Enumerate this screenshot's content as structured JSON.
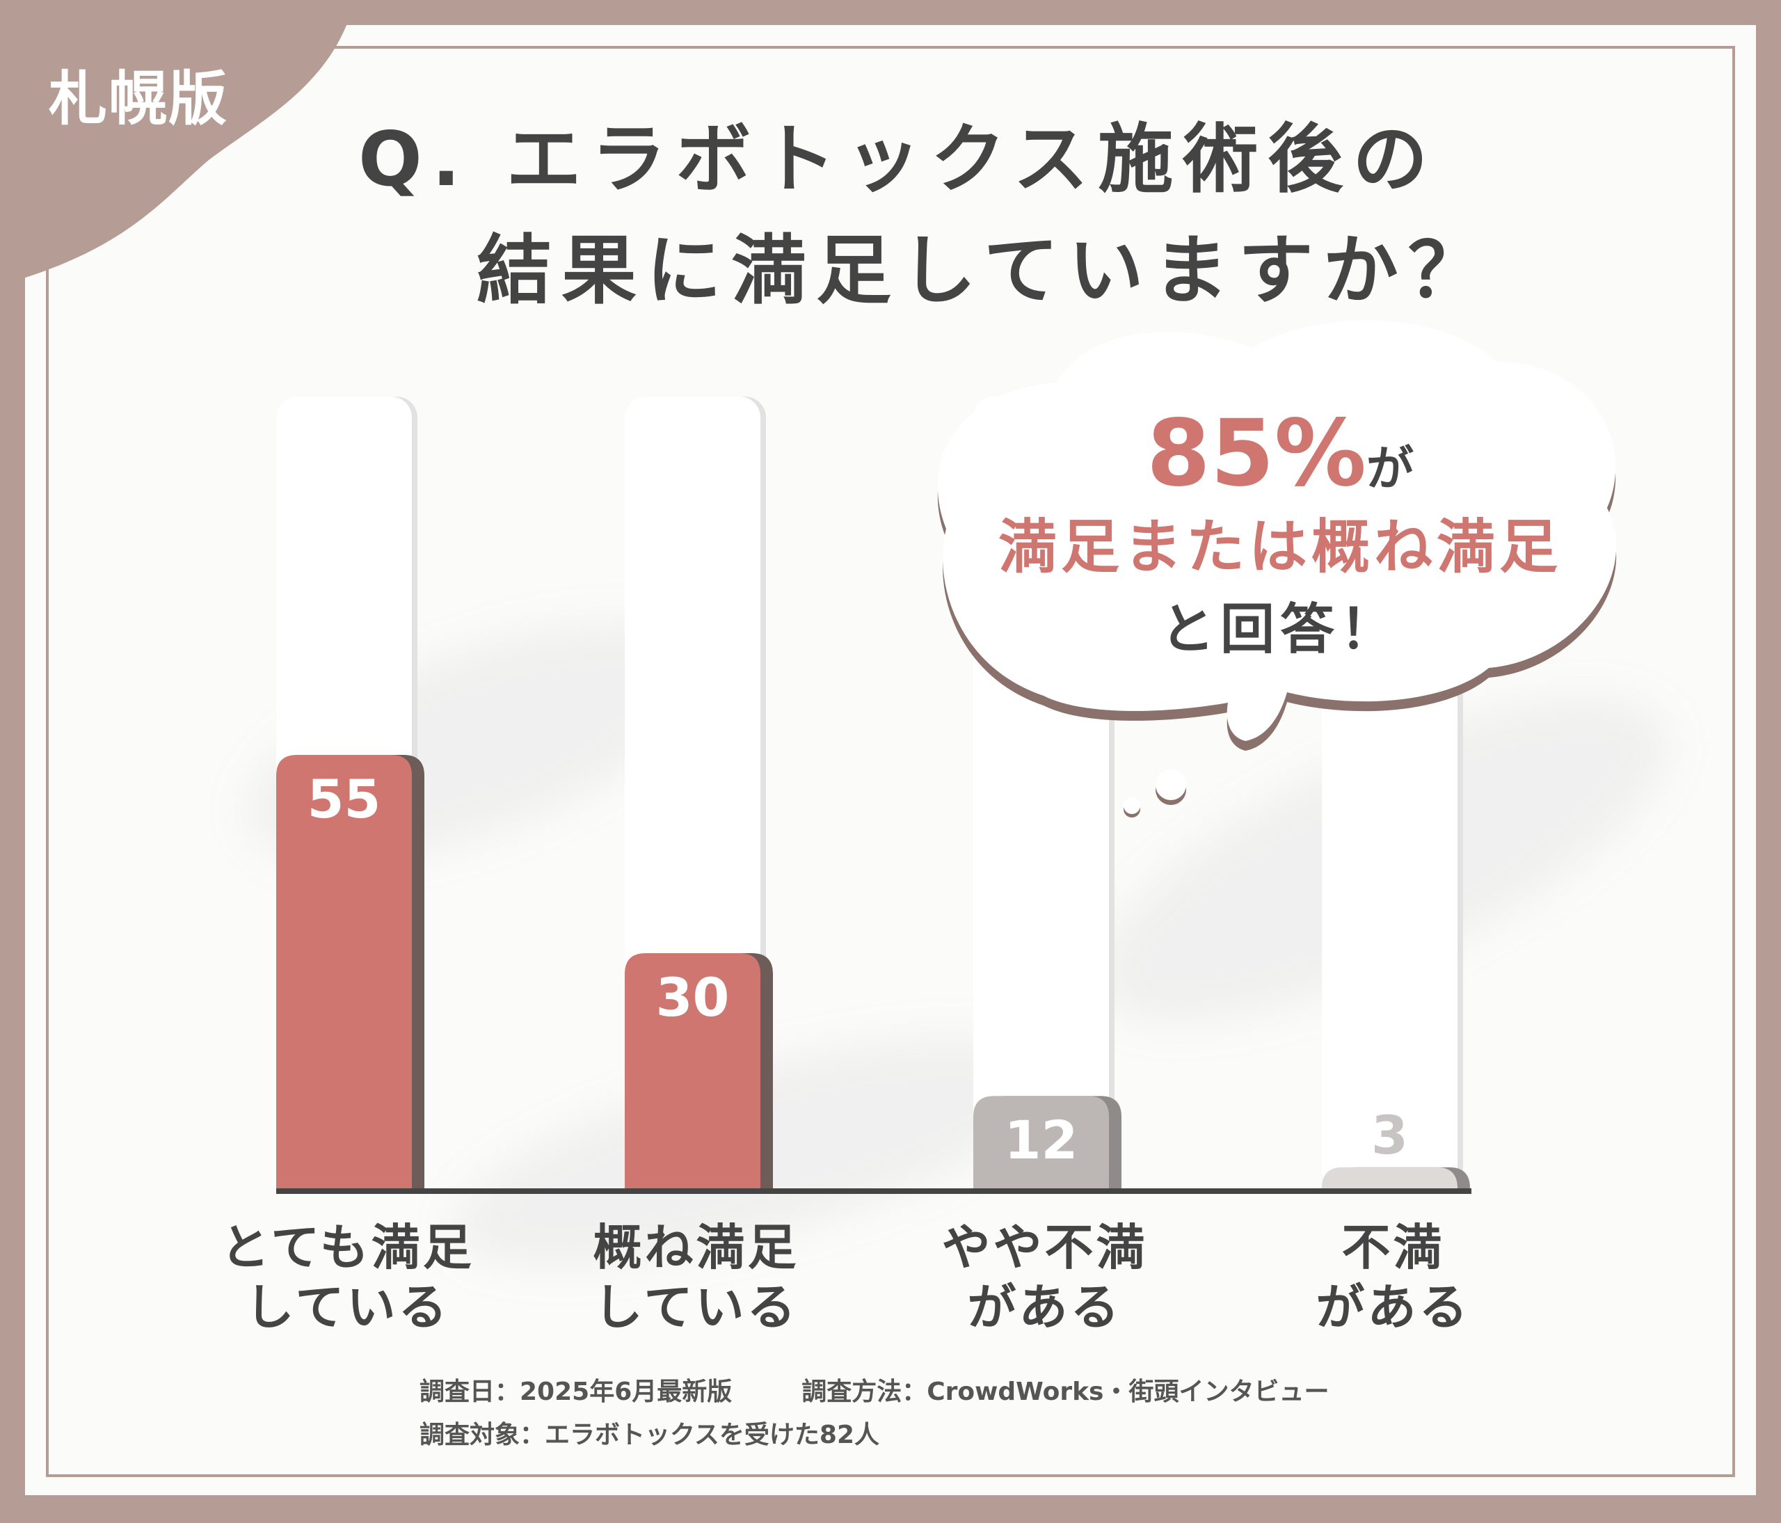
{
  "edition": "札幌版",
  "title": {
    "line1": "Q. エラボトックス施術後の",
    "line2": "結果に満足していますか？"
  },
  "callout": {
    "percent": "85%",
    "particle": "が",
    "line2": "満足または概ね満足",
    "line3": "と回答！"
  },
  "footer": {
    "date": "調査日：2025年6月最新版",
    "method": "調査方法：CrowdWorks・街頭インタビュー",
    "target": "調査対象：エラボトックスを受けた82人"
  },
  "colors": {
    "satisfied": "#d07670",
    "unsatisfied": "#bcb7b5",
    "frame": "#b59c94",
    "text": "#444444"
  },
  "chart_data": {
    "type": "bar",
    "categories": [
      "とても満足\nしている",
      "概ね満足\nしている",
      "やや不満\nがある",
      "不満\nがある"
    ],
    "values": [
      55,
      30,
      12,
      3
    ],
    "value_labels": [
      "55",
      "30",
      "12",
      "3"
    ],
    "bar_colors": [
      "#d07670",
      "#d07670",
      "#bcb7b5",
      "#dddad8"
    ],
    "title": "Q. エラボトックス施術後の結果に満足していますか？",
    "xlabel": "",
    "ylabel": "",
    "ylim": [
      0,
      100
    ],
    "grid": false,
    "legend": "none"
  }
}
